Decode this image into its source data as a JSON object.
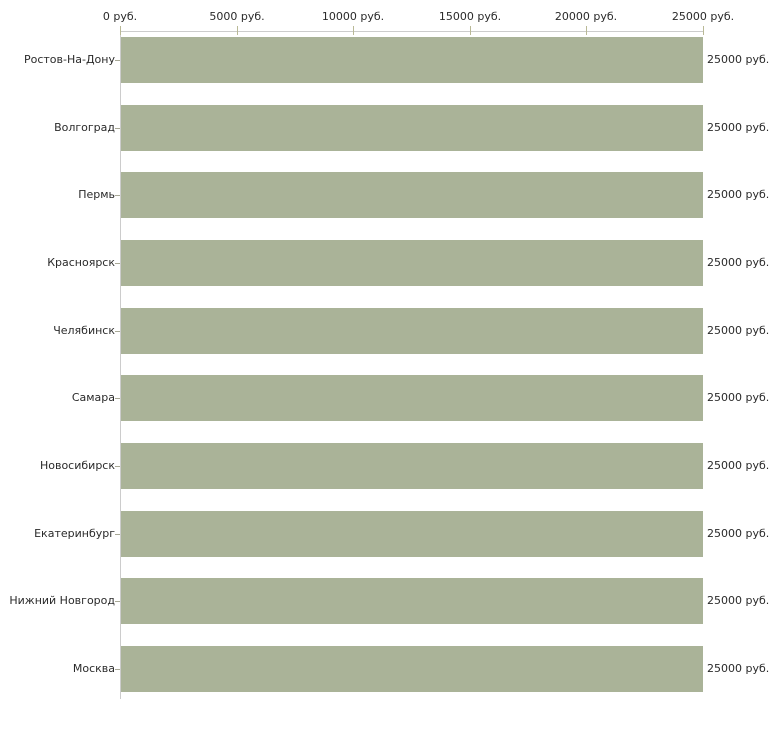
{
  "chart_data": {
    "type": "bar",
    "orientation": "horizontal",
    "title": "",
    "xlabel": "",
    "ylabel": "",
    "categories": [
      "Ростов-На-Дону",
      "Волгоград",
      "Пермь",
      "Красноярск",
      "Челябинск",
      "Самара",
      "Новосибирск",
      "Екатеринбург",
      "Нижний Новгород",
      "Москва"
    ],
    "values": [
      25000,
      25000,
      25000,
      25000,
      25000,
      25000,
      25000,
      25000,
      25000,
      25000
    ],
    "value_suffix": " руб.",
    "bar_value_labels": [
      "25000 руб.",
      "25000 руб.",
      "25000 руб.",
      "25000 руб.",
      "25000 руб.",
      "25000 руб.",
      "25000 руб.",
      "25000 руб.",
      "25000 руб.",
      "25000 руб."
    ],
    "xlim": [
      0,
      25000
    ],
    "x_ticks": [
      {
        "value": 0,
        "label": "0 руб."
      },
      {
        "value": 5000,
        "label": "5000 руб."
      },
      {
        "value": 10000,
        "label": "10000 руб."
      },
      {
        "value": 15000,
        "label": "15000 руб."
      },
      {
        "value": 20000,
        "label": "20000 руб."
      },
      {
        "value": 25000,
        "label": "25000 руб."
      }
    ],
    "axis_position": "top",
    "grid": false,
    "legend": false,
    "colors": {
      "bar": "#aab398",
      "axis_line": "#cccccc",
      "x_tick": "#b9b996",
      "y_tick": "#a8a896",
      "text": "#2a2a2a",
      "background": "#ffffff"
    }
  }
}
